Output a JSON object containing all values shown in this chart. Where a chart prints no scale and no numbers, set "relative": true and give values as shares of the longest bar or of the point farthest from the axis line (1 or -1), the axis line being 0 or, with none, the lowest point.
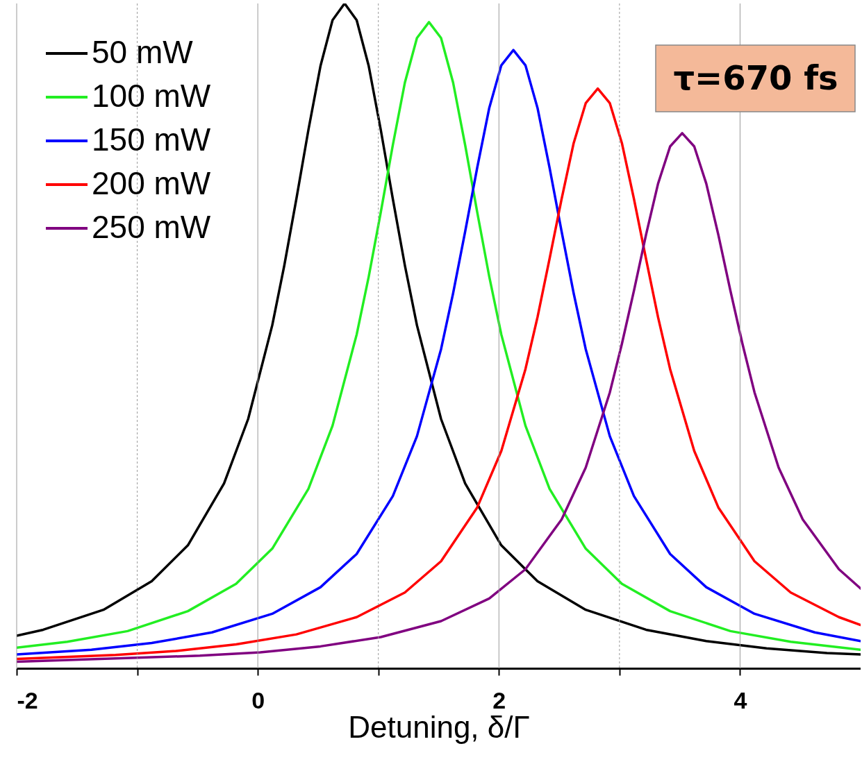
{
  "chart_data": {
    "type": "line",
    "relative": true,
    "xlabel": "Detuning, δ/Γ",
    "xlim": [
      -2,
      5
    ],
    "xticks": [
      -2,
      {
        "value": -1,
        "label": null
      },
      0,
      {
        "value": 1,
        "label": null
      },
      2,
      {
        "value": 3,
        "label": null
      },
      4
    ],
    "tick_labels": "x",
    "grid": "x",
    "legend": "top left",
    "line_style": "solid",
    "annotations": [
      "τ=670 fs"
    ],
    "series": [
      {
        "name": "50 mW",
        "color": "#000000",
        "x": [
          -2,
          -1.78,
          -1.28,
          -0.88,
          -0.58,
          -0.28,
          -0.08,
          0.12,
          0.22,
          0.32,
          0.42,
          0.52,
          0.62,
          0.72,
          0.82,
          0.92,
          1.02,
          1.12,
          1.22,
          1.32,
          1.52,
          1.72,
          2.02,
          2.32,
          2.72,
          3.22,
          3.72,
          4.22,
          4.72,
          5
        ],
        "values": [
          0.049,
          0.058,
          0.088,
          0.131,
          0.185,
          0.278,
          0.375,
          0.516,
          0.606,
          0.706,
          0.81,
          0.906,
          0.975,
          1,
          0.975,
          0.906,
          0.81,
          0.706,
          0.606,
          0.516,
          0.375,
          0.278,
          0.185,
          0.131,
          0.088,
          0.058,
          0.041,
          0.03,
          0.023,
          0.021
        ]
      },
      {
        "name": "100 mW",
        "color": "#22ee22",
        "x": [
          -2,
          -1.58,
          -1.08,
          -0.58,
          -0.18,
          0.12,
          0.42,
          0.62,
          0.82,
          0.92,
          1.02,
          1.12,
          1.22,
          1.32,
          1.42,
          1.52,
          1.62,
          1.72,
          1.82,
          1.92,
          2.02,
          2.22,
          2.42,
          2.72,
          3.02,
          3.42,
          3.92,
          4.42,
          5
        ],
        "values": [
          0.031,
          0.04,
          0.056,
          0.086,
          0.127,
          0.18,
          0.27,
          0.365,
          0.502,
          0.589,
          0.686,
          0.787,
          0.881,
          0.948,
          0.972,
          0.948,
          0.881,
          0.787,
          0.686,
          0.589,
          0.502,
          0.365,
          0.27,
          0.18,
          0.127,
          0.086,
          0.056,
          0.04,
          0.028
        ]
      },
      {
        "name": "150 mW",
        "color": "#0000ff",
        "x": [
          -2,
          -1.38,
          -0.88,
          -0.38,
          0.12,
          0.52,
          0.82,
          1.12,
          1.32,
          1.52,
          1.62,
          1.72,
          1.82,
          1.92,
          2.02,
          2.12,
          2.22,
          2.32,
          2.42,
          2.52,
          2.62,
          2.72,
          2.92,
          3.12,
          3.42,
          3.72,
          4.12,
          4.62,
          5
        ],
        "values": [
          0.021,
          0.028,
          0.038,
          0.054,
          0.082,
          0.122,
          0.172,
          0.259,
          0.349,
          0.48,
          0.564,
          0.657,
          0.753,
          0.843,
          0.907,
          0.93,
          0.907,
          0.843,
          0.753,
          0.657,
          0.564,
          0.48,
          0.349,
          0.259,
          0.172,
          0.122,
          0.082,
          0.054,
          0.041
        ]
      },
      {
        "name": "200 mW",
        "color": "#ff0000",
        "x": [
          -2,
          -1.18,
          -0.68,
          -0.18,
          0.32,
          0.82,
          1.22,
          1.52,
          1.82,
          2.02,
          2.22,
          2.32,
          2.42,
          2.52,
          2.62,
          2.72,
          2.82,
          2.92,
          3.02,
          3.12,
          3.22,
          3.32,
          3.42,
          3.62,
          3.82,
          4.12,
          4.42,
          4.82,
          5
        ],
        "values": [
          0.014,
          0.02,
          0.026,
          0.036,
          0.051,
          0.077,
          0.114,
          0.161,
          0.242,
          0.327,
          0.45,
          0.528,
          0.616,
          0.706,
          0.79,
          0.85,
          0.872,
          0.85,
          0.79,
          0.706,
          0.616,
          0.528,
          0.45,
          0.327,
          0.242,
          0.161,
          0.114,
          0.077,
          0.065
        ]
      },
      {
        "name": "250 mW",
        "color": "#800080",
        "x": [
          -2,
          -0.48,
          0.02,
          0.52,
          1.02,
          1.52,
          1.92,
          2.22,
          2.52,
          2.72,
          2.92,
          3.02,
          3.12,
          3.22,
          3.32,
          3.42,
          3.52,
          3.62,
          3.72,
          3.82,
          3.92,
          4.02,
          4.12,
          4.32,
          4.52,
          4.82,
          5
        ],
        "values": [
          0.01,
          0.019,
          0.024,
          0.033,
          0.047,
          0.071,
          0.105,
          0.149,
          0.224,
          0.302,
          0.415,
          0.488,
          0.568,
          0.652,
          0.729,
          0.785,
          0.805,
          0.785,
          0.729,
          0.652,
          0.568,
          0.488,
          0.415,
          0.302,
          0.224,
          0.149,
          0.12
        ]
      }
    ]
  }
}
